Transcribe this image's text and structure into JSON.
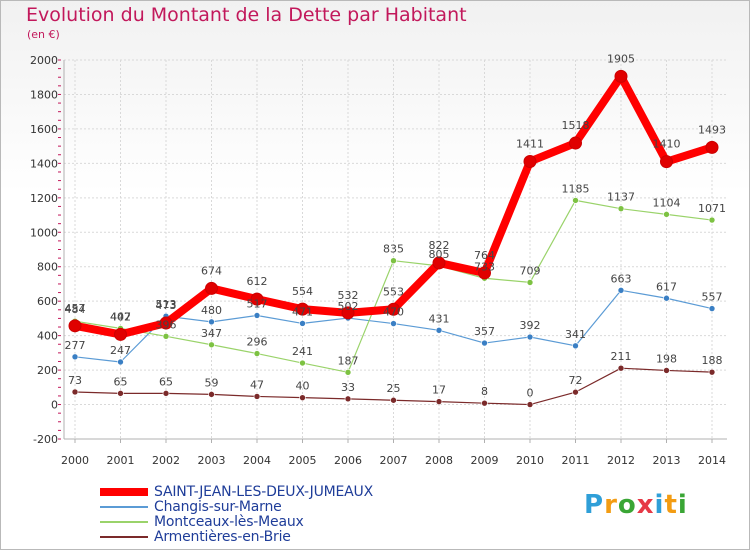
{
  "header": {
    "title": "Evolution du Montant de la Dette par Habitant",
    "subtitle": "(en €)"
  },
  "logo": {
    "text": "Proxiti",
    "letter_colors": [
      "#2f9fd8",
      "#f39c12",
      "#3aa635",
      "#e63946",
      "#2f9fd8",
      "#f39c12",
      "#3aa635"
    ]
  },
  "chart_data": {
    "type": "line",
    "title": "Evolution du Montant de la Dette par Habitant",
    "subtitle": "(en €)",
    "xlabel": "",
    "ylabel": "",
    "x": [
      "2000",
      "2001",
      "2002",
      "2003",
      "2004",
      "2005",
      "2006",
      "2007",
      "2008",
      "2009",
      "2010",
      "2011",
      "2012",
      "2013",
      "2014"
    ],
    "ylim": [
      -200,
      2000
    ],
    "yticks": [
      -200,
      0,
      200,
      400,
      600,
      800,
      1000,
      1200,
      1400,
      1600,
      1800,
      2000
    ],
    "grid": true,
    "legend_position": "bottom-left",
    "series": [
      {
        "name": "Armentières-en-Brie",
        "color": "#7b2a2a",
        "marker": "#7b2a2a",
        "width": 1.2,
        "values": [
          73,
          65,
          65,
          59,
          47,
          40,
          33,
          25,
          17,
          8,
          0,
          72,
          211,
          198,
          188
        ]
      },
      {
        "name": "Changis-sur-Marne",
        "color": "#5b9bd5",
        "marker": "#3a7fc4",
        "width": 1.2,
        "values": [
          277,
          247,
          513,
          480,
          517,
          471,
          502,
          470,
          431,
          357,
          392,
          341,
          663,
          617,
          557
        ]
      },
      {
        "name": "Montceaux-lès-Meaux",
        "color": "#9ad36a",
        "marker": "#7dc242",
        "width": 1.2,
        "values": [
          484,
          442,
          396,
          347,
          296,
          241,
          187,
          835,
          805,
          733,
          709,
          1185,
          1137,
          1104,
          1071
        ]
      },
      {
        "name": "SAINT-JEAN-LES-DEUX-JUMEAUX",
        "color": "#ff0000",
        "marker": "#e00000",
        "width": 8,
        "values": [
          457,
          407,
          473,
          674,
          612,
          554,
          532,
          553,
          822,
          764,
          1411,
          1518,
          1905,
          1410,
          1493
        ]
      }
    ],
    "data_labels": [
      {
        "series": 0,
        "labels": [
          "73",
          "65",
          "65",
          "59",
          "47",
          "40",
          "33",
          "25",
          "17",
          "8",
          "0",
          "72",
          "211",
          "198",
          "188"
        ]
      },
      {
        "series": 1,
        "labels": [
          "277",
          "247",
          "513",
          "480",
          "517",
          "471",
          "502",
          "470",
          "431",
          "357",
          "392",
          "341",
          "663",
          "617",
          "557"
        ]
      },
      {
        "series": 2,
        "labels": [
          "484",
          "442",
          "396",
          "347",
          "296",
          "241",
          "187",
          "835",
          "805",
          "733",
          "709",
          "1185",
          "1137",
          "1104",
          "1071"
        ]
      },
      {
        "series": 3,
        "labels": [
          "457",
          "407",
          "473",
          "674",
          "612",
          "554",
          "532",
          "553",
          "822",
          "764",
          "1411",
          "1518",
          "1905",
          "1410",
          "1493"
        ]
      }
    ]
  },
  "legend": {
    "items": [
      {
        "label": "SAINT-JEAN-LES-DEUX-JUMEAUX",
        "color": "#ff0000",
        "thick": true
      },
      {
        "label": "Changis-sur-Marne",
        "color": "#5b9bd5",
        "thick": false
      },
      {
        "label": "Montceaux-lès-Meaux",
        "color": "#9ad36a",
        "thick": false
      },
      {
        "label": "Armentières-en-Brie",
        "color": "#7b2a2a",
        "thick": false
      }
    ]
  }
}
